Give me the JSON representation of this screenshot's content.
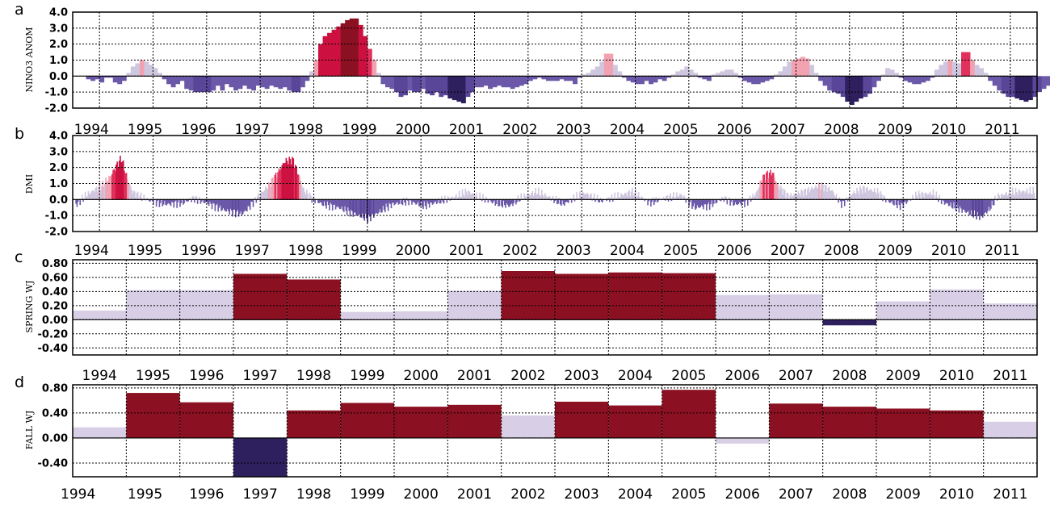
{
  "colors": {
    "strong_neg": "#2e1f5e",
    "mid_neg": "#5a4699",
    "weak_neg": "#6b58a8",
    "weak_pos": "#cfc6df",
    "light_pos": "#d8cfe6",
    "pink": "#f2a1b1",
    "rose": "#e0305b",
    "red": "#cc1140",
    "dark_red": "#8b1022"
  },
  "chart_data": [
    {
      "type": "bar",
      "panel": "a",
      "ylabel": "NINO3 ANOM",
      "ylim": [
        -2.0,
        4.0
      ],
      "yticks": [
        "4.0",
        "3.0",
        "2.0",
        "1.0",
        "0.0",
        "-1.0",
        "-2.0"
      ],
      "xticks": [
        "1994",
        "1995",
        "1996",
        "1997",
        "1998",
        "1999",
        "2000",
        "2001",
        "2002",
        "2003",
        "2004",
        "2005",
        "2006",
        "2007",
        "2008",
        "2009",
        "2010",
        "2011"
      ],
      "x_start": "1994-01",
      "resolution": "monthly",
      "values": [
        -0.2,
        -0.3,
        -0.2,
        -0.4,
        -0.1,
        -0.1,
        -0.4,
        -0.5,
        -0.3,
        0.2,
        0.6,
        0.8,
        1.0,
        0.9,
        0.7,
        0.5,
        0.2,
        -0.2,
        -0.5,
        -0.7,
        -0.5,
        -0.3,
        -0.8,
        -0.9,
        -1.0,
        -1.0,
        -1.0,
        -1.0,
        -0.9,
        -0.6,
        -0.9,
        -0.5,
        -0.7,
        -0.9,
        -0.8,
        -0.6,
        -0.8,
        -0.9,
        -0.6,
        -0.7,
        -0.8,
        -0.6,
        -0.7,
        -0.8,
        -0.7,
        -0.9,
        -1.0,
        -1.0,
        -0.7,
        -0.3,
        0.3,
        1.0,
        2.0,
        2.5,
        2.7,
        2.9,
        3.1,
        3.3,
        3.5,
        3.6,
        3.6,
        3.2,
        2.5,
        1.7,
        1.0,
        0.2,
        -0.5,
        -0.7,
        -0.8,
        -1.0,
        -1.3,
        -1.2,
        -0.9,
        -1.0,
        -1.0,
        -0.8,
        -1.1,
        -1.2,
        -1.0,
        -1.3,
        -1.2,
        -1.4,
        -1.5,
        -1.6,
        -1.7,
        -1.3,
        -1.0,
        -0.7,
        -0.7,
        -0.6,
        -0.8,
        -0.7,
        -0.6,
        -0.7,
        -0.7,
        -0.8,
        -0.7,
        -0.6,
        -0.5,
        -0.3,
        -0.2,
        -0.1,
        -0.2,
        -0.3,
        -0.3,
        -0.3,
        -0.2,
        -0.3,
        -0.3,
        -0.5,
        -0.1,
        0.1,
        0.2,
        0.4,
        0.6,
        0.9,
        1.4,
        1.4,
        0.7,
        0.3,
        -0.1,
        -0.3,
        -0.4,
        -0.5,
        -0.5,
        -0.3,
        -0.5,
        -0.4,
        -0.2,
        -0.3,
        -0.1,
        0.1,
        0.3,
        0.4,
        0.6,
        0.4,
        0.2,
        -0.1,
        -0.2,
        -0.3,
        0.1,
        0.2,
        0.3,
        0.4,
        0.4,
        0.2,
        -0.1,
        -0.3,
        -0.4,
        -0.5,
        -0.5,
        -0.4,
        -0.3,
        -0.2,
        0.1,
        0.3,
        0.6,
        0.9,
        1.0,
        1.1,
        1.2,
        1.1,
        0.7,
        0.2,
        -0.3,
        -0.6,
        -0.9,
        -1.0,
        -1.1,
        -1.3,
        -1.6,
        -1.8,
        -1.6,
        -1.4,
        -1.3,
        -1.1,
        -0.7,
        -0.3,
        0.1,
        0.5,
        0.4,
        0.2,
        -0.1,
        -0.3,
        -0.4,
        -0.5,
        -0.5,
        -0.4,
        -0.3,
        -0.1,
        0.4,
        0.7,
        0.9,
        1.0,
        0.9,
        0.8,
        1.5,
        1.5,
        1.0,
        0.7,
        0.5,
        0.2,
        -0.3,
        -0.6,
        -0.9,
        -1.1,
        -1.3,
        -1.3,
        -1.4,
        -1.5,
        -1.6,
        -1.5,
        -1.3,
        -1.0,
        -0.8,
        -0.6,
        -0.5,
        -0.3,
        -0.2,
        -0.3,
        -0.4,
        -0.6
      ]
    },
    {
      "type": "bar",
      "panel": "b",
      "ylabel": "DMI",
      "ylim": [
        -2.0,
        4.0
      ],
      "yticks": [
        "4.0",
        "3.0",
        "2.0",
        "1.0",
        "0.0",
        "-1.0",
        "-2.0"
      ],
      "xticks": [
        "1994",
        "1995",
        "1996",
        "1997",
        "1998",
        "1999",
        "2000",
        "2001",
        "2002",
        "2003",
        "2004",
        "2005",
        "2006",
        "2007",
        "2008",
        "2009",
        "2010",
        "2011"
      ],
      "x_start": "1994-01",
      "resolution": "weekly",
      "anchors": [
        [
          1993.78,
          -0.4
        ],
        [
          1994.0,
          0.3
        ],
        [
          1994.15,
          0.6
        ],
        [
          1994.3,
          0.9
        ],
        [
          1994.45,
          1.5
        ],
        [
          1994.55,
          2.1
        ],
        [
          1994.65,
          2.6
        ],
        [
          1994.75,
          1.4
        ],
        [
          1994.85,
          0.5
        ],
        [
          1995.0,
          0.2
        ],
        [
          1995.2,
          -0.1
        ],
        [
          1995.5,
          -0.3
        ],
        [
          1995.8,
          -0.2
        ],
        [
          1996.0,
          0.1
        ],
        [
          1996.3,
          -0.3
        ],
        [
          1996.6,
          -0.7
        ],
        [
          1996.9,
          -0.9
        ],
        [
          1997.0,
          -0.6
        ],
        [
          1997.2,
          0.2
        ],
        [
          1997.4,
          0.9
        ],
        [
          1997.55,
          1.6
        ],
        [
          1997.7,
          2.4
        ],
        [
          1997.85,
          2.5
        ],
        [
          1997.95,
          1.6
        ],
        [
          1998.05,
          0.6
        ],
        [
          1998.2,
          0.1
        ],
        [
          1998.4,
          -0.3
        ],
        [
          1998.7,
          -0.5
        ],
        [
          1999.0,
          -0.9
        ],
        [
          1999.25,
          -1.2
        ],
        [
          1999.45,
          -0.8
        ],
        [
          1999.7,
          -0.3
        ],
        [
          2000.0,
          -0.1
        ],
        [
          2000.3,
          -0.4
        ],
        [
          2000.6,
          -0.1
        ],
        [
          2000.9,
          0.2
        ],
        [
          2001.1,
          0.5
        ],
        [
          2001.3,
          0.2
        ],
        [
          2001.6,
          -0.2
        ],
        [
          2001.9,
          -0.4
        ],
        [
          2002.1,
          0.1
        ],
        [
          2002.4,
          0.5
        ],
        [
          2002.6,
          0.2
        ],
        [
          2002.9,
          -0.3
        ],
        [
          2003.1,
          0.1
        ],
        [
          2003.3,
          0.4
        ],
        [
          2003.6,
          -0.1
        ],
        [
          2003.9,
          0.2
        ],
        [
          2004.2,
          0.5
        ],
        [
          2004.5,
          -0.2
        ],
        [
          2004.8,
          0.1
        ],
        [
          2005.1,
          0.3
        ],
        [
          2005.35,
          -0.5
        ],
        [
          2005.6,
          -0.4
        ],
        [
          2005.9,
          0.1
        ],
        [
          2006.1,
          -0.3
        ],
        [
          2006.3,
          -0.2
        ],
        [
          2006.5,
          0.4
        ],
        [
          2006.6,
          1.3
        ],
        [
          2006.7,
          1.6
        ],
        [
          2006.8,
          1.7
        ],
        [
          2006.9,
          0.9
        ],
        [
          2007.1,
          0.2
        ],
        [
          2007.4,
          0.5
        ],
        [
          2007.7,
          0.9
        ],
        [
          2007.9,
          0.6
        ],
        [
          2008.1,
          -0.3
        ],
        [
          2008.3,
          0.4
        ],
        [
          2008.5,
          0.7
        ],
        [
          2008.75,
          0.5
        ],
        [
          2008.95,
          -0.1
        ],
        [
          2009.2,
          -0.4
        ],
        [
          2009.5,
          0.3
        ],
        [
          2009.8,
          0.4
        ],
        [
          2010.0,
          -0.2
        ],
        [
          2010.3,
          -0.6
        ],
        [
          2010.5,
          -0.9
        ],
        [
          2010.7,
          -1.1
        ],
        [
          2010.85,
          -0.6
        ],
        [
          2011.0,
          0.2
        ],
        [
          2011.2,
          0.4
        ],
        [
          2011.4,
          0.5
        ]
      ]
    },
    {
      "type": "bar",
      "panel": "c",
      "ylabel": "SPRING WJ",
      "ylim": [
        -0.5,
        0.85
      ],
      "yticks": [
        "0.80",
        "0.60",
        "0.40",
        "0.20",
        "0.00",
        "-0.20",
        "-0.40"
      ],
      "xticks": [
        "1994",
        "1995",
        "1996",
        "1997",
        "1998",
        "1999",
        "2000",
        "2001",
        "2002",
        "2003",
        "2004",
        "2005",
        "2006",
        "2007",
        "2008",
        "2009",
        "2010",
        "2011"
      ],
      "x_start": "1993.75",
      "values": [
        0.13,
        0.42,
        0.42,
        0.65,
        0.57,
        0.11,
        0.12,
        0.41,
        0.69,
        0.65,
        0.67,
        0.66,
        0.35,
        0.36,
        -0.08,
        0.26,
        0.43,
        0.23
      ],
      "significant": [
        false,
        false,
        false,
        true,
        true,
        false,
        false,
        false,
        true,
        true,
        true,
        true,
        false,
        false,
        true,
        false,
        false,
        false
      ]
    },
    {
      "type": "bar",
      "panel": "d",
      "ylabel": "FALL WJ",
      "ylim": [
        -0.62,
        0.85
      ],
      "yticks": [
        "0.80",
        "0.40",
        "0.00",
        "-0.40"
      ],
      "xticks": [
        "1994",
        "1995",
        "1996",
        "1997",
        "1998",
        "1999",
        "2000",
        "2001",
        "2002",
        "2003",
        "2004",
        "2005",
        "2006",
        "2007",
        "2008",
        "2009",
        "2010",
        "2011"
      ],
      "x_start": "1993.75",
      "values": [
        0.17,
        0.72,
        0.57,
        -0.62,
        0.44,
        0.56,
        0.5,
        0.53,
        0.36,
        0.58,
        0.52,
        0.77,
        -0.09,
        0.55,
        0.5,
        0.47,
        0.44,
        0.26
      ],
      "significant": [
        false,
        true,
        true,
        true,
        true,
        true,
        true,
        true,
        false,
        true,
        true,
        true,
        false,
        true,
        true,
        true,
        true,
        false
      ]
    }
  ]
}
